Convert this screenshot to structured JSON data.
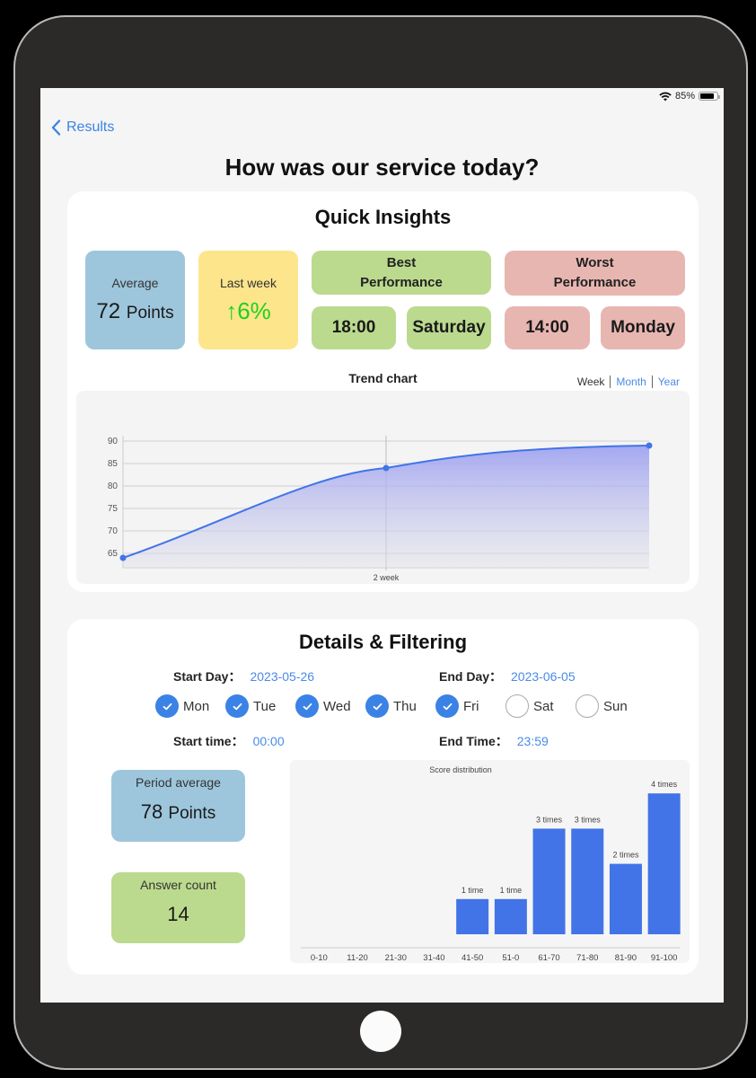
{
  "status_bar": {
    "battery_percent": "85%"
  },
  "nav": {
    "back_label": "Results"
  },
  "page": {
    "title": "How was our service today?"
  },
  "quick_insights": {
    "title": "Quick Insights",
    "average": {
      "label": "Average",
      "value": "72",
      "unit": "Points"
    },
    "last_week": {
      "label": "Last week",
      "arrow": "↑",
      "value": "6%"
    },
    "best": {
      "title_line1": "Best",
      "title_line2": "Performance",
      "time": "18:00",
      "day": "Saturday"
    },
    "worst": {
      "title_line1": "Worst",
      "title_line2": "Performance",
      "time": "14:00",
      "day": "Monday"
    },
    "trend": {
      "title": "Trend chart",
      "tabs": [
        {
          "label": "Week"
        },
        {
          "label": "Month"
        },
        {
          "label": "Year"
        }
      ]
    }
  },
  "details": {
    "title": "Details & Filtering",
    "start_day_label": "Start Day：",
    "start_day_value": "2023-05-26",
    "end_day_label": "End Day：",
    "end_day_value": "2023-06-05",
    "days": [
      {
        "label": "Mon",
        "checked": true
      },
      {
        "label": "Tue",
        "checked": true
      },
      {
        "label": "Wed",
        "checked": true
      },
      {
        "label": "Thu",
        "checked": true
      },
      {
        "label": "Fri",
        "checked": true
      },
      {
        "label": "Sat",
        "checked": false
      },
      {
        "label": "Sun",
        "checked": false
      }
    ],
    "start_time_label": "Start time：",
    "start_time_value": "00:00",
    "end_time_label": "End Time：",
    "end_time_value": "23:59",
    "period_average": {
      "label": "Period average",
      "value": "78",
      "unit": "Points"
    },
    "answer_count": {
      "label": "Answer count",
      "value": "14"
    }
  },
  "colors": {
    "accent": "#3b82e6",
    "average_tile": "#9dc6dc",
    "last_week_tile": "#fde58c",
    "best_tile": "#bbda8e",
    "worst_tile": "#e8b6b1",
    "up_green": "#1ed11e",
    "bar": "#4274e8"
  },
  "chart_data": [
    {
      "type": "area",
      "title": "Trend chart",
      "x": [
        "",
        "2 week",
        ""
      ],
      "values": [
        64,
        84,
        89
      ],
      "yticks": [
        65,
        70,
        75,
        80,
        85,
        90
      ],
      "ylim": [
        62,
        91
      ],
      "xlabel": "",
      "ylabel": "",
      "grid": true
    },
    {
      "type": "bar",
      "title": "Score distribution",
      "categories": [
        "0-10",
        "11-20",
        "21-30",
        "31-40",
        "41-50",
        "51-0",
        "61-70",
        "71-80",
        "81-90",
        "91-100"
      ],
      "values": [
        0,
        0,
        0,
        0,
        1,
        1,
        3,
        3,
        2,
        4
      ],
      "data_labels": [
        "",
        "",
        "",
        "",
        "1 time",
        "1 time",
        "3 times",
        "3 times",
        "2 times",
        "4 times"
      ],
      "xlabel": "",
      "ylabel": "",
      "ylim": [
        0,
        4
      ]
    }
  ]
}
